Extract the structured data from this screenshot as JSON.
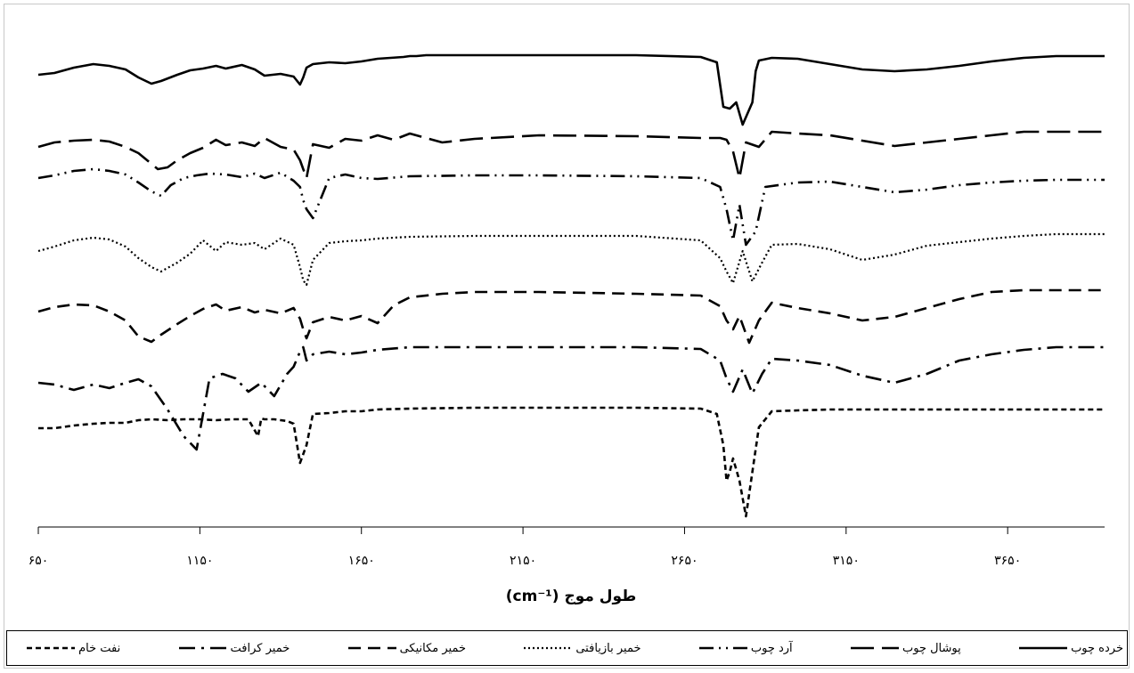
{
  "chart_data": {
    "type": "line",
    "title": "",
    "xlabel": "طول موج (cm⁻¹)",
    "ylabel": "",
    "xlim": [
      650,
      3950
    ],
    "x_ticks": [
      650,
      1150,
      1650,
      2150,
      2650,
      3150,
      3650
    ],
    "x_tick_labels": [
      "۶۵۰",
      "۱۱۵۰",
      "۱۶۵۰",
      "۲۱۵۰",
      "۲۶۵۰",
      "۳۱۵۰",
      "۳۶۵۰"
    ],
    "y_axis_shown": false,
    "grid": false,
    "legend_position": "bottom",
    "series": [
      {
        "name": "خرده چوب",
        "dash": "solid",
        "x": [
          650,
          700,
          760,
          820,
          870,
          920,
          960,
          1000,
          1030,
          1080,
          1120,
          1160,
          1200,
          1230,
          1280,
          1320,
          1350,
          1400,
          1440,
          1460,
          1470,
          1480,
          1500,
          1550,
          1600,
          1650,
          1700,
          1780,
          1800,
          1820,
          1850,
          1900,
          2000,
          2200,
          2500,
          2700,
          2750,
          2770,
          2790,
          2810,
          2830,
          2860,
          2870,
          2880,
          2920,
          3000,
          3100,
          3200,
          3300,
          3400,
          3500,
          3600,
          3700,
          3800,
          3950
        ],
        "y": [
          24,
          22,
          16,
          12,
          14,
          18,
          27,
          34,
          31,
          24,
          19,
          17,
          14,
          17,
          13,
          18,
          25,
          23,
          26,
          35,
          27,
          16,
          12,
          10,
          11,
          9,
          6,
          4,
          3,
          3,
          2,
          2,
          2,
          2,
          2,
          4,
          10,
          60,
          62,
          55,
          80,
          55,
          20,
          8,
          5,
          6,
          12,
          18,
          20,
          18,
          14,
          9,
          5,
          3,
          3
        ]
      },
      {
        "name": "پوشال چوب",
        "dash": "longdash",
        "x": [
          650,
          700,
          760,
          820,
          870,
          920,
          960,
          1000,
          1020,
          1050,
          1080,
          1120,
          1160,
          1200,
          1230,
          1280,
          1320,
          1350,
          1400,
          1440,
          1460,
          1470,
          1480,
          1500,
          1550,
          1600,
          1650,
          1700,
          1750,
          1800,
          1900,
          2000,
          2200,
          2500,
          2700,
          2760,
          2780,
          2800,
          2820,
          2840,
          2880,
          2920,
          3000,
          3100,
          3200,
          3300,
          3400,
          3500,
          3600,
          3700,
          3800,
          3950
        ],
        "y": [
          105,
          100,
          98,
          97,
          99,
          105,
          112,
          124,
          130,
          128,
          120,
          112,
          106,
          97,
          103,
          100,
          104,
          95,
          105,
          108,
          120,
          130,
          140,
          102,
          106,
          96,
          98,
          92,
          97,
          90,
          100,
          96,
          92,
          93,
          95,
          95,
          97,
          110,
          140,
          100,
          105,
          88,
          90,
          92,
          98,
          104,
          100,
          96,
          92,
          88,
          88,
          88
        ]
      },
      {
        "name": "آرد چوب",
        "dash": "dashdotdot",
        "x": [
          650,
          700,
          760,
          820,
          870,
          920,
          960,
          1000,
          1030,
          1060,
          1100,
          1140,
          1180,
          1230,
          1280,
          1320,
          1350,
          1400,
          1440,
          1460,
          1470,
          1480,
          1500,
          1550,
          1600,
          1650,
          1700,
          1800,
          2000,
          2200,
          2500,
          2700,
          2760,
          2780,
          2800,
          2820,
          2840,
          2870,
          2900,
          3000,
          3100,
          3200,
          3300,
          3400,
          3500,
          3600,
          3700,
          3800,
          3950
        ],
        "y": [
          140,
          137,
          132,
          130,
          132,
          136,
          145,
          155,
          160,
          148,
          140,
          137,
          135,
          136,
          139,
          135,
          140,
          134,
          143,
          150,
          165,
          175,
          185,
          140,
          136,
          140,
          141,
          138,
          137,
          137,
          138,
          140,
          150,
          175,
          210,
          170,
          215,
          200,
          150,
          145,
          144,
          150,
          156,
          153,
          148,
          145,
          143,
          142,
          142
        ]
      },
      {
        "name": "خمیر بازیافتی",
        "dash": "dotted",
        "x": [
          650,
          700,
          760,
          820,
          870,
          920,
          960,
          1000,
          1030,
          1080,
          1120,
          1160,
          1200,
          1230,
          1280,
          1320,
          1350,
          1400,
          1440,
          1460,
          1470,
          1480,
          1500,
          1550,
          1600,
          1650,
          1700,
          1800,
          2000,
          2200,
          2500,
          2700,
          2760,
          2780,
          2800,
          2830,
          2860,
          2890,
          2920,
          3000,
          3100,
          3200,
          3300,
          3400,
          3500,
          3600,
          3700,
          3800,
          3950
        ],
        "y": [
          222,
          217,
          210,
          207,
          209,
          217,
          230,
          240,
          245,
          235,
          225,
          210,
          222,
          212,
          215,
          213,
          220,
          208,
          215,
          240,
          255,
          260,
          232,
          213,
          211,
          210,
          208,
          206,
          205,
          205,
          205,
          210,
          230,
          245,
          258,
          222,
          256,
          235,
          215,
          214,
          220,
          232,
          226,
          216,
          212,
          208,
          205,
          203,
          203
        ]
      },
      {
        "name": "خمیر مکانیکی",
        "dash": "dash",
        "x": [
          650,
          700,
          760,
          820,
          870,
          920,
          960,
          1000,
          1030,
          1080,
          1120,
          1160,
          1200,
          1230,
          1280,
          1320,
          1350,
          1400,
          1440,
          1460,
          1470,
          1480,
          1500,
          1550,
          1600,
          1650,
          1700,
          1750,
          1800,
          1900,
          2000,
          2200,
          2500,
          2700,
          2760,
          2780,
          2800,
          2820,
          2850,
          2880,
          2920,
          3000,
          3100,
          3200,
          3300,
          3400,
          3500,
          3600,
          3700,
          3800,
          3950
        ],
        "y": [
          290,
          285,
          282,
          283,
          290,
          300,
          318,
          324,
          316,
          304,
          295,
          287,
          282,
          289,
          285,
          291,
          288,
          292,
          286,
          298,
          310,
          320,
          302,
          296,
          300,
          295,
          303,
          283,
          274,
          270,
          268,
          268,
          270,
          272,
          284,
          300,
          310,
          295,
          325,
          300,
          280,
          286,
          292,
          300,
          296,
          286,
          276,
          268,
          266,
          266,
          266
        ]
      },
      {
        "name": "خمیر کرافت",
        "dash": "dashdot",
        "x": [
          650,
          700,
          760,
          820,
          870,
          920,
          960,
          1000,
          1050,
          1100,
          1140,
          1180,
          1220,
          1260,
          1300,
          1340,
          1380,
          1420,
          1440,
          1460,
          1470,
          1480,
          1500,
          1550,
          1600,
          1650,
          1700,
          1800,
          2000,
          2200,
          2500,
          2700,
          2760,
          2780,
          2800,
          2830,
          2860,
          2890,
          2920,
          3000,
          3100,
          3200,
          3300,
          3400,
          3500,
          3600,
          3700,
          3800,
          3950
        ],
        "y": [
          370,
          372,
          378,
          372,
          376,
          370,
          366,
          374,
          400,
          430,
          445,
          365,
          360,
          365,
          380,
          370,
          385,
          360,
          352,
          335,
          330,
          345,
          338,
          335,
          338,
          336,
          333,
          330,
          330,
          330,
          330,
          332,
          345,
          365,
          380,
          355,
          382,
          360,
          343,
          345,
          350,
          362,
          370,
          360,
          345,
          338,
          333,
          330,
          330
        ]
      },
      {
        "name": "نفت خام",
        "dash": "shortdash",
        "x": [
          650,
          700,
          760,
          820,
          870,
          920,
          960,
          1000,
          1050,
          1100,
          1150,
          1200,
          1250,
          1300,
          1330,
          1340,
          1350,
          1380,
          1400,
          1420,
          1440,
          1460,
          1480,
          1500,
          1550,
          1600,
          1650,
          1700,
          1800,
          2000,
          2200,
          2500,
          2700,
          2750,
          2770,
          2780,
          2790,
          2800,
          2820,
          2840,
          2860,
          2880,
          2920,
          3000,
          3100,
          3200,
          3300,
          3400,
          3500,
          3600,
          3700,
          3800,
          3950
        ],
        "y": [
          421,
          421,
          418,
          416,
          415,
          415,
          412,
          411,
          412,
          411,
          411,
          412,
          411,
          411,
          430,
          410,
          411,
          411,
          412,
          413,
          416,
          460,
          440,
          405,
          404,
          402,
          402,
          400,
          399,
          398,
          398,
          398,
          399,
          405,
          440,
          480,
          470,
          455,
          480,
          520,
          470,
          420,
          402,
          401,
          400,
          400,
          400,
          400,
          400,
          400,
          400,
          400,
          400
        ]
      }
    ]
  }
}
